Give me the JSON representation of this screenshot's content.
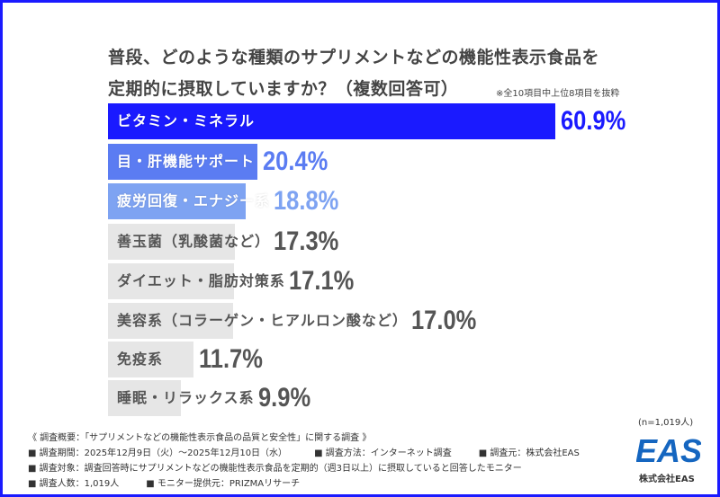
{
  "title_lines": [
    "普段、どのような種類のサプリメントなどの機能性表示食品を",
    "定期的に摂取していますか？（複数回答可）"
  ],
  "note": "※全10項目中上位8項目を抜粋",
  "chart_data": {
    "type": "bar",
    "orientation": "horizontal",
    "categories": [
      "ビタミン・ミネラル",
      "目・肝機能サポート",
      "疲労回復・エナジー系",
      "善玉菌（乳酸菌など）",
      "ダイエット・脂肪対策系",
      "美容系（コラーゲン・ヒアルロン酸など）",
      "免疫系",
      "睡眠・リラックス系"
    ],
    "values": [
      60.9,
      20.4,
      18.8,
      17.3,
      17.1,
      17.0,
      11.7,
      9.9
    ],
    "value_labels": [
      "60.9%",
      "20.4%",
      "18.8%",
      "17.3%",
      "17.1%",
      "17.0%",
      "11.7%",
      "9.9%"
    ],
    "bar_colors": [
      "#1a1aff",
      "#5b7cf2",
      "#7ea3f2",
      "#e6e6e6",
      "#e6e6e6",
      "#e6e6e6",
      "#e6e6e6",
      "#e6e6e6"
    ],
    "value_colors": [
      "#1a1aff",
      "#5b7cf2",
      "#7ea3f2",
      "#555555",
      "#555555",
      "#555555",
      "#555555",
      "#555555"
    ],
    "label_colors": [
      "#ffffff",
      "#ffffff",
      "#ffffff",
      "#555555",
      "#555555",
      "#555555",
      "#555555",
      "#555555"
    ],
    "grid": false
  },
  "sample_size": "(n=1,019人)",
  "survey": {
    "heading": "《 調査概要：「サプリメントなどの機能性表示食品の品質と安全性」に関する調査 》",
    "period": "■ 調査期間：2025年12月9日（火）～2025年12月10日（水）",
    "method": "■ 調査方法：インターネット調査",
    "source": "■ 調査元：株式会社EAS",
    "target": "■ 調査対象：調査回答時にサプリメントなどの機能性表示食品を定期的（週3日以上）に摂取していると回答したモニター",
    "count": "■ 調査人数：1,019人",
    "provider": "■ モニター提供元：PRIZMAリサーチ"
  },
  "logo": {
    "text": "EAS",
    "company": "株式会社EAS",
    "color": "#1566c0"
  }
}
